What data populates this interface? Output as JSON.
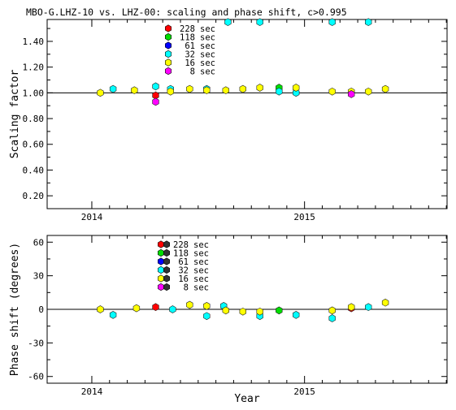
{
  "title": "MBO-G.LHZ-10 vs. LHZ-00: scaling and phase shift, c>0.995",
  "x_axis": {
    "label": "Year",
    "ticks": [
      "2014",
      "2015"
    ]
  },
  "legend": [
    {
      "label": "228 sec",
      "color": "#ff0000"
    },
    {
      "label": "118 sec",
      "color": "#00dd00"
    },
    {
      "label": "61 sec",
      "color": "#0000ff"
    },
    {
      "label": "32 sec",
      "color": "#00ffff"
    },
    {
      "label": "16 sec",
      "color": "#ffff00"
    },
    {
      "label": "8 sec",
      "color": "#ff00ff"
    }
  ],
  "chart_data": [
    {
      "type": "scatter",
      "ylabel": "Scaling factor",
      "xlim": [
        2013.79,
        2015.67
      ],
      "ylim": [
        0.1,
        1.57
      ],
      "yticks": [
        "0.20",
        "0.40",
        "0.60",
        "0.80",
        "1.00",
        "1.20",
        "1.40"
      ],
      "reference_line": 1.0,
      "series": [
        {
          "name": "228 sec",
          "color": "#ff0000",
          "points": [
            [
              2014.3,
              0.98
            ]
          ]
        },
        {
          "name": "118 sec",
          "color": "#00dd00",
          "points": [
            [
              2014.88,
              1.04
            ]
          ]
        },
        {
          "name": "61 sec",
          "color": "#0000ff",
          "points": []
        },
        {
          "name": "32 sec",
          "color": "#00ffff",
          "points": [
            [
              2014.1,
              1.03
            ],
            [
              2014.3,
              1.05
            ],
            [
              2014.37,
              1.03
            ],
            [
              2014.54,
              1.03
            ],
            [
              2014.64,
              1.55
            ],
            [
              2014.79,
              1.55
            ],
            [
              2014.88,
              1.01
            ],
            [
              2014.96,
              1.0
            ],
            [
              2015.13,
              1.55
            ],
            [
              2015.3,
              1.55
            ]
          ]
        },
        {
          "name": "16 sec",
          "color": "#ffff00",
          "points": [
            [
              2014.04,
              1.0
            ],
            [
              2014.2,
              1.02
            ],
            [
              2014.37,
              1.01
            ],
            [
              2014.46,
              1.03
            ],
            [
              2014.54,
              1.02
            ],
            [
              2014.63,
              1.02
            ],
            [
              2014.71,
              1.03
            ],
            [
              2014.79,
              1.04
            ],
            [
              2014.96,
              1.04
            ],
            [
              2015.13,
              1.01
            ],
            [
              2015.22,
              1.01
            ],
            [
              2015.3,
              1.01
            ],
            [
              2015.38,
              1.03
            ]
          ]
        },
        {
          "name": "8 sec",
          "color": "#ff00ff",
          "points": [
            [
              2014.3,
              0.93
            ],
            [
              2015.22,
              0.99
            ]
          ]
        }
      ]
    },
    {
      "type": "scatter",
      "ylabel": "Phase shift (degrees)",
      "xlim": [
        2013.79,
        2015.67
      ],
      "ylim": [
        -66,
        66
      ],
      "yticks": [
        "-60",
        "-30",
        "0",
        "30",
        "60"
      ],
      "reference_line": 0,
      "series": [
        {
          "name": "228 sec",
          "color": "#ff0000",
          "points": [
            [
              2014.3,
              2
            ],
            [
              2015.22,
              1
            ]
          ]
        },
        {
          "name": "118 sec",
          "color": "#00dd00",
          "points": [
            [
              2014.88,
              -1
            ]
          ]
        },
        {
          "name": "61 sec",
          "color": "#0000ff",
          "points": []
        },
        {
          "name": "32 sec",
          "color": "#00ffff",
          "points": [
            [
              2014.1,
              -5
            ],
            [
              2014.38,
              0
            ],
            [
              2014.54,
              -6
            ],
            [
              2014.62,
              3
            ],
            [
              2014.79,
              -6
            ],
            [
              2014.96,
              -5
            ],
            [
              2015.13,
              -8
            ],
            [
              2015.3,
              2
            ]
          ]
        },
        {
          "name": "16 sec",
          "color": "#ffff00",
          "points": [
            [
              2014.04,
              0
            ],
            [
              2014.21,
              1
            ],
            [
              2014.46,
              4
            ],
            [
              2014.54,
              3
            ],
            [
              2014.63,
              -1
            ],
            [
              2014.71,
              -2
            ],
            [
              2014.79,
              -2
            ],
            [
              2015.13,
              -1
            ],
            [
              2015.22,
              2
            ],
            [
              2015.38,
              6
            ]
          ]
        },
        {
          "name": "8 sec",
          "color": "#ff00ff",
          "points": []
        }
      ]
    }
  ]
}
